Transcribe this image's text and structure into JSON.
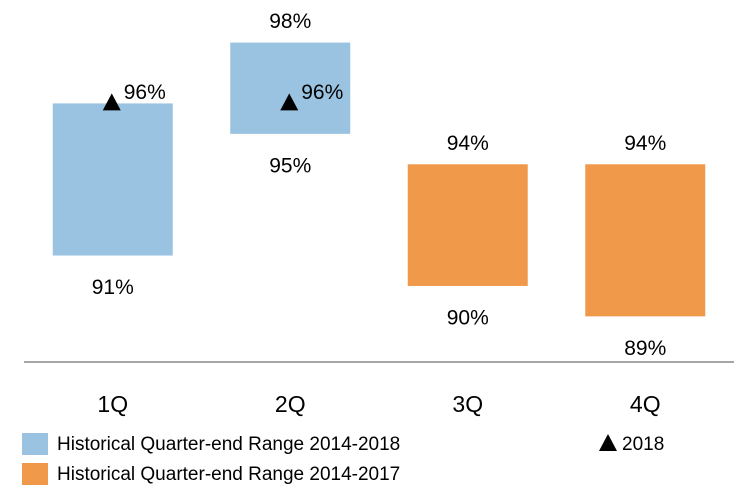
{
  "chart_data": {
    "type": "floating_bar",
    "categories": [
      "1Q",
      "2Q",
      "3Q",
      "4Q"
    ],
    "ylim": [
      87.5,
      99.4
    ],
    "series": [
      {
        "name": "Historical Quarter-end Range 2014-2018",
        "color": "#9ac3e2",
        "low": [
          91,
          95,
          null,
          null
        ],
        "high": [
          96,
          98,
          null,
          null
        ],
        "low_labels": [
          "91%",
          "95%",
          null,
          null
        ],
        "high_labels": [
          null,
          "98%",
          null,
          null
        ]
      },
      {
        "name": "Historical Quarter-end Range 2014-2017",
        "color": "#f0994a",
        "low": [
          null,
          null,
          90,
          89
        ],
        "high": [
          null,
          null,
          94,
          94
        ],
        "low_labels": [
          null,
          null,
          "90%",
          "89%"
        ],
        "high_labels": [
          null,
          null,
          "94%",
          "94%"
        ]
      },
      {
        "name": "2018",
        "type": "marker",
        "color": "#000000",
        "values": [
          96,
          96,
          null,
          null
        ],
        "value_labels": [
          "96%",
          "96%",
          null,
          null
        ]
      }
    ]
  }
}
